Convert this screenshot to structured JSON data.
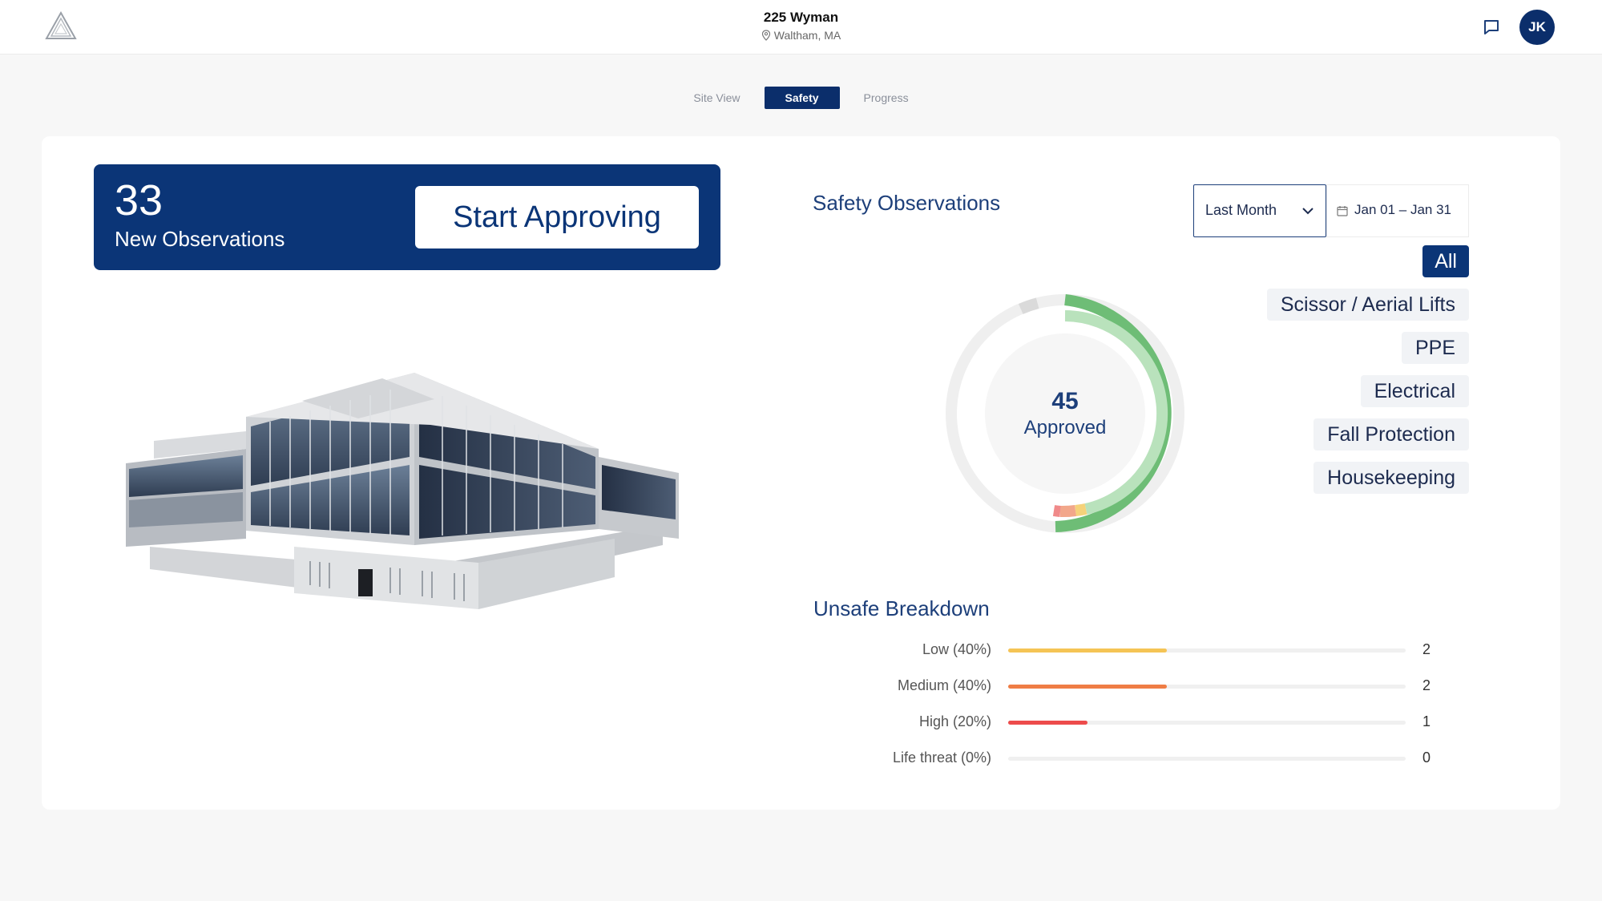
{
  "header": {
    "site_name": "225 Wyman",
    "site_location": "Waltham, MA",
    "user_initials": "JK",
    "icons": {
      "logo": "triangle-logo-icon",
      "location": "map-pin-icon",
      "messages": "chat-icon"
    }
  },
  "tabs": [
    {
      "label": "Site View",
      "active": false
    },
    {
      "label": "Safety",
      "active": true
    },
    {
      "label": "Progress",
      "active": false
    }
  ],
  "observations": {
    "count": "33",
    "label": "New Observations",
    "button_label": "Start Approving"
  },
  "safety": {
    "title": "Safety Observations",
    "range_value": "Last Month",
    "date_range": "Jan 01 – Jan 31",
    "approved_count": "45",
    "approved_label": "Approved",
    "filters": [
      {
        "label": "All",
        "active": true
      },
      {
        "label": "Scissor / Aerial Lifts",
        "active": false
      },
      {
        "label": "PPE",
        "active": false
      },
      {
        "label": "Electrical",
        "active": false
      },
      {
        "label": "Fall Protection",
        "active": false
      },
      {
        "label": "Housekeeping",
        "active": false
      }
    ],
    "colors": {
      "approved": "#6ebd76",
      "approved_light": "#b9e2bc",
      "pending": "#e2e2e2",
      "low": "#f5c455",
      "medium": "#ef7d45",
      "high": "#ed4b4b"
    }
  },
  "unsafe_breakdown": {
    "title": "Unsafe Breakdown",
    "rows": [
      {
        "label": "Low (40%)",
        "percent": 40,
        "count": "2",
        "color": "#f5c455"
      },
      {
        "label": "Medium (40%)",
        "percent": 40,
        "count": "2",
        "color": "#ef7d45"
      },
      {
        "label": "High (20%)",
        "percent": 20,
        "count": "1",
        "color": "#ed4b4b"
      },
      {
        "label": "Life threat (0%)",
        "percent": 0,
        "count": "0",
        "color": "#ed4b4b"
      }
    ]
  }
}
